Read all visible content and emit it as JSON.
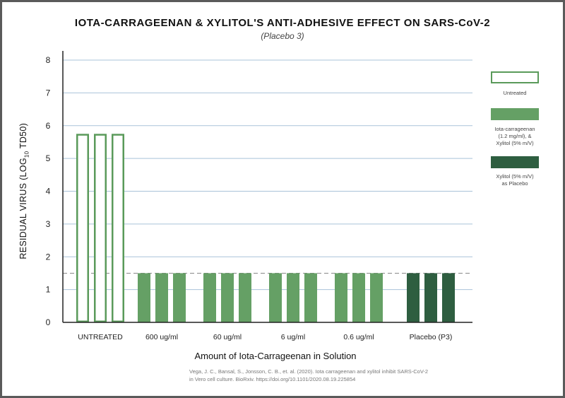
{
  "title": "IOTA-CARRAGEENAN & XYLITOL'S ANTI-ADHESIVE EFFECT ON SARS-CoV-2",
  "subtitle": "(Placebo 3)",
  "citation": [
    "Vega, J. C., Bansal, S., Jonsson, C. B., et. al. (2020). Iota carrageenan and xylitol inhibit SARS-CoV-2",
    "in Vero cell culture. BioRxiv. https://doi.org/10.1101/2020.08.19.225854"
  ],
  "colors": {
    "untreated": "#5a9a5a",
    "iota_xylitol": "#65a065",
    "xylitol_placebo": "#2e5e40",
    "grid": "#a9c3d9",
    "threshold": "#888888"
  },
  "legend": [
    {
      "name": "Untreated",
      "style": "outline",
      "color": "#5a9a5a"
    },
    {
      "name": "Iota-carrageenan (1.2 mg/ml), & Xylitol (5% m/V)",
      "lines": [
        "Iota-carrageenan",
        "(1.2 mg/ml), &",
        "Xylitol (5% m/V)"
      ],
      "style": "fill",
      "color": "#65a065"
    },
    {
      "name": "Xylitol (5% m/V) as Placebo",
      "lines": [
        "Xylitol (5% m/V)",
        "as Placebo"
      ],
      "style": "fill",
      "color": "#2e5e40"
    }
  ],
  "chart_data": {
    "type": "bar",
    "title": "IOTA-CARRAGEENAN & XYLITOL'S ANTI-ADHESIVE EFFECT ON SARS-CoV-2",
    "subtitle": "(Placebo 3)",
    "xlabel": "Amount of Iota-Carrageenan in Solution",
    "ylabel_main": "RESIDUAL VIRUS (LOG",
    "ylabel_sub": "10",
    "ylabel_end": " TD50)",
    "ylim": [
      0,
      8
    ],
    "yticks": [
      0,
      1,
      2,
      3,
      4,
      5,
      6,
      7,
      8
    ],
    "grid": true,
    "threshold_line": 1.5,
    "legend_position": "right",
    "categories": [
      "UNTREATED",
      "600 ug/ml",
      "60 ug/ml",
      "6 ug/ml",
      "0.6 ug/ml",
      "Placebo (P3)"
    ],
    "groups": [
      {
        "category": "UNTREATED",
        "series": "Untreated",
        "values": [
          5.75,
          5.75,
          5.75
        ]
      },
      {
        "category": "600 ug/ml",
        "series": "Iota-carrageenan (1.2 mg/ml), & Xylitol (5% m/V)",
        "values": [
          1.5,
          1.5,
          1.5
        ]
      },
      {
        "category": "60 ug/ml",
        "series": "Iota-carrageenan (1.2 mg/ml), & Xylitol (5% m/V)",
        "values": [
          1.5,
          1.5,
          1.5
        ]
      },
      {
        "category": "6 ug/ml",
        "series": "Iota-carrageenan (1.2 mg/ml), & Xylitol (5% m/V)",
        "values": [
          1.5,
          1.5,
          1.5
        ]
      },
      {
        "category": "0.6 ug/ml",
        "series": "Iota-carrageenan (1.2 mg/ml), & Xylitol (5% m/V)",
        "values": [
          1.5,
          1.5,
          1.5
        ]
      },
      {
        "category": "Placebo (P3)",
        "series": "Xylitol (5% m/V) as Placebo",
        "values": [
          1.5,
          1.5,
          1.5
        ]
      }
    ]
  }
}
